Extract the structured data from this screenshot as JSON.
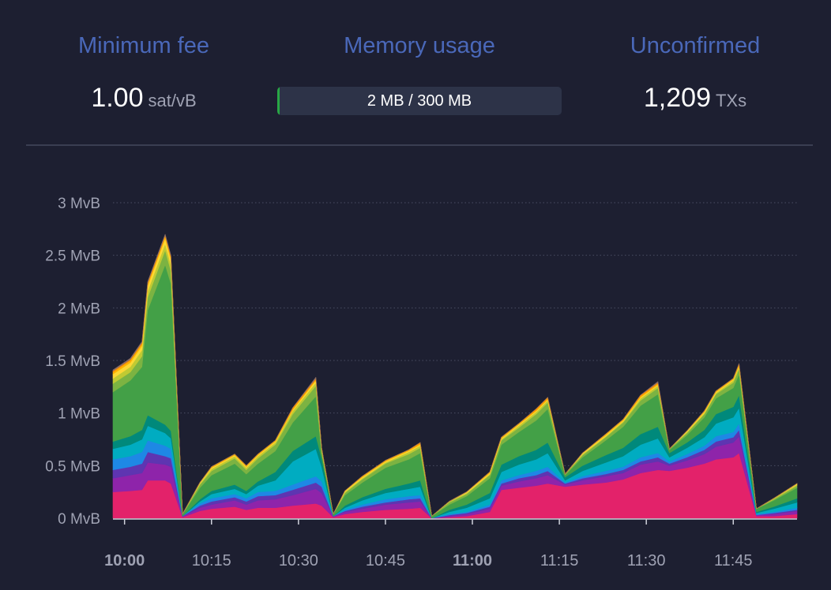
{
  "stats": {
    "min_fee": {
      "title": "Minimum fee",
      "value": "1.00",
      "unit": "sat/vB"
    },
    "memory": {
      "title": "Memory usage",
      "text": "2 MB / 300 MB",
      "used_mb": 2,
      "max_mb": 300,
      "fill_color": "#28a745"
    },
    "unconfirmed": {
      "title": "Unconfirmed",
      "value": "1,209",
      "unit": "TXs"
    }
  },
  "chart_data": {
    "type": "area",
    "stacked": true,
    "y_unit": "MvB",
    "ylim": [
      0,
      3
    ],
    "y_ticks": [
      "0 MvB",
      "0.5 MvB",
      "1 MvB",
      "1.5 MvB",
      "2 MvB",
      "2.5 MvB",
      "3 MvB"
    ],
    "y_tick_values": [
      0,
      0.5,
      1,
      1.5,
      2,
      2.5,
      3
    ],
    "x_range": [
      "09:58",
      "11:56"
    ],
    "x_ticks": [
      {
        "label": "10:00",
        "time": "10:00",
        "major": true
      },
      {
        "label": "10:15",
        "time": "10:15",
        "major": false
      },
      {
        "label": "10:30",
        "time": "10:30",
        "major": false
      },
      {
        "label": "10:45",
        "time": "10:45",
        "major": false
      },
      {
        "label": "11:00",
        "time": "11:00",
        "major": true
      },
      {
        "label": "11:15",
        "time": "11:15",
        "major": false
      },
      {
        "label": "11:30",
        "time": "11:30",
        "major": false
      },
      {
        "label": "11:45",
        "time": "11:45",
        "major": false
      }
    ],
    "grid": true,
    "x": [
      "09:58",
      "10:01",
      "10:03",
      "10:04",
      "10:07",
      "10:08",
      "10:10",
      "10:13",
      "10:15",
      "10:19",
      "10:21",
      "10:23",
      "10:26",
      "10:29",
      "10:33",
      "10:34",
      "10:36",
      "10:38",
      "10:41",
      "10:45",
      "10:49",
      "10:51",
      "10:53",
      "10:56",
      "10:59",
      "11:03",
      "11:05",
      "11:08",
      "11:11",
      "11:13",
      "11:16",
      "11:19",
      "11:23",
      "11:26",
      "11:29",
      "11:32",
      "11:34",
      "11:37",
      "11:40",
      "11:42",
      "11:45",
      "11:46",
      "11:49",
      "11:52",
      "11:56"
    ],
    "series": [
      {
        "color": "#e3226a",
        "values": [
          0.25,
          0.26,
          0.27,
          0.36,
          0.36,
          0.33,
          0.01,
          0.07,
          0.09,
          0.11,
          0.08,
          0.1,
          0.1,
          0.12,
          0.14,
          0.12,
          0.01,
          0.04,
          0.06,
          0.08,
          0.09,
          0.1,
          0.0,
          0.01,
          0.02,
          0.06,
          0.27,
          0.29,
          0.31,
          0.33,
          0.3,
          0.32,
          0.34,
          0.37,
          0.43,
          0.46,
          0.45,
          0.48,
          0.52,
          0.56,
          0.58,
          0.62,
          0.02,
          0.02,
          0.04
        ]
      },
      {
        "color": "#8e24aa",
        "values": [
          0.13,
          0.15,
          0.16,
          0.17,
          0.15,
          0.16,
          0.01,
          0.03,
          0.04,
          0.06,
          0.05,
          0.07,
          0.08,
          0.1,
          0.14,
          0.12,
          0.01,
          0.02,
          0.03,
          0.05,
          0.06,
          0.06,
          0.0,
          0.01,
          0.02,
          0.03,
          0.04,
          0.06,
          0.07,
          0.08,
          0.02,
          0.04,
          0.06,
          0.06,
          0.08,
          0.08,
          0.05,
          0.07,
          0.09,
          0.12,
          0.14,
          0.16,
          0.01,
          0.02,
          0.03
        ]
      },
      {
        "color": "#5e35b1",
        "values": [
          0.08,
          0.08,
          0.09,
          0.1,
          0.08,
          0.08,
          0.0,
          0.02,
          0.03,
          0.03,
          0.03,
          0.04,
          0.04,
          0.05,
          0.06,
          0.06,
          0.0,
          0.01,
          0.02,
          0.02,
          0.03,
          0.03,
          0.0,
          0.01,
          0.01,
          0.02,
          0.02,
          0.03,
          0.03,
          0.04,
          0.01,
          0.02,
          0.02,
          0.03,
          0.03,
          0.04,
          0.02,
          0.03,
          0.04,
          0.05,
          0.05,
          0.06,
          0.0,
          0.01,
          0.01
        ]
      },
      {
        "color": "#1e88e5",
        "values": [
          0.1,
          0.1,
          0.11,
          0.11,
          0.1,
          0.09,
          0.0,
          0.02,
          0.03,
          0.03,
          0.03,
          0.04,
          0.04,
          0.05,
          0.06,
          0.05,
          0.0,
          0.01,
          0.02,
          0.03,
          0.03,
          0.03,
          0.0,
          0.01,
          0.01,
          0.02,
          0.03,
          0.03,
          0.04,
          0.04,
          0.01,
          0.02,
          0.03,
          0.03,
          0.04,
          0.04,
          0.02,
          0.03,
          0.04,
          0.05,
          0.05,
          0.06,
          0.01,
          0.01,
          0.02
        ]
      },
      {
        "color": "#00acc1",
        "values": [
          0.1,
          0.11,
          0.12,
          0.14,
          0.12,
          0.1,
          0.0,
          0.02,
          0.04,
          0.05,
          0.04,
          0.06,
          0.1,
          0.22,
          0.26,
          0.14,
          0.0,
          0.02,
          0.04,
          0.06,
          0.07,
          0.08,
          0.0,
          0.02,
          0.04,
          0.06,
          0.08,
          0.1,
          0.11,
          0.13,
          0.02,
          0.05,
          0.08,
          0.1,
          0.12,
          0.14,
          0.04,
          0.06,
          0.08,
          0.12,
          0.14,
          0.15,
          0.01,
          0.03,
          0.05
        ]
      },
      {
        "color": "#00897b",
        "values": [
          0.07,
          0.08,
          0.09,
          0.1,
          0.08,
          0.07,
          0.0,
          0.02,
          0.03,
          0.04,
          0.03,
          0.04,
          0.08,
          0.1,
          0.12,
          0.08,
          0.0,
          0.02,
          0.03,
          0.04,
          0.05,
          0.06,
          0.0,
          0.02,
          0.03,
          0.05,
          0.07,
          0.08,
          0.09,
          0.1,
          0.03,
          0.05,
          0.07,
          0.08,
          0.1,
          0.11,
          0.04,
          0.05,
          0.07,
          0.09,
          0.1,
          0.12,
          0.01,
          0.02,
          0.04
        ]
      },
      {
        "color": "#43a047",
        "values": [
          0.47,
          0.53,
          0.6,
          1.0,
          1.52,
          1.4,
          0.02,
          0.11,
          0.15,
          0.2,
          0.16,
          0.17,
          0.2,
          0.27,
          0.38,
          0.05,
          0.02,
          0.1,
          0.14,
          0.2,
          0.23,
          0.26,
          0.02,
          0.05,
          0.08,
          0.14,
          0.19,
          0.23,
          0.28,
          0.32,
          0.02,
          0.08,
          0.14,
          0.2,
          0.27,
          0.31,
          0.03,
          0.07,
          0.12,
          0.15,
          0.18,
          0.2,
          0.03,
          0.06,
          0.1
        ]
      },
      {
        "color": "#7cb342",
        "values": [
          0.08,
          0.08,
          0.1,
          0.12,
          0.14,
          0.12,
          0.0,
          0.03,
          0.04,
          0.05,
          0.04,
          0.05,
          0.06,
          0.08,
          0.1,
          0.02,
          0.0,
          0.02,
          0.03,
          0.04,
          0.05,
          0.05,
          0.0,
          0.02,
          0.02,
          0.03,
          0.04,
          0.04,
          0.06,
          0.06,
          0.01,
          0.02,
          0.03,
          0.04,
          0.05,
          0.06,
          0.01,
          0.02,
          0.03,
          0.04,
          0.05,
          0.05,
          0.0,
          0.01,
          0.02
        ]
      },
      {
        "color": "#c0ca33",
        "values": [
          0.05,
          0.05,
          0.06,
          0.06,
          0.06,
          0.06,
          0.0,
          0.01,
          0.02,
          0.02,
          0.02,
          0.02,
          0.02,
          0.03,
          0.03,
          0.01,
          0.0,
          0.01,
          0.01,
          0.01,
          0.02,
          0.02,
          0.0,
          0.01,
          0.01,
          0.01,
          0.01,
          0.02,
          0.02,
          0.02,
          0.0,
          0.01,
          0.01,
          0.01,
          0.02,
          0.02,
          0.0,
          0.01,
          0.01,
          0.01,
          0.02,
          0.02,
          0.0,
          0.01,
          0.01
        ]
      },
      {
        "color": "#fdd835",
        "values": [
          0.04,
          0.04,
          0.04,
          0.05,
          0.05,
          0.05,
          0.0,
          0.01,
          0.01,
          0.01,
          0.01,
          0.01,
          0.01,
          0.01,
          0.02,
          0.01,
          0.0,
          0.01,
          0.01,
          0.01,
          0.01,
          0.01,
          0.0,
          0.0,
          0.01,
          0.01,
          0.01,
          0.01,
          0.01,
          0.01,
          0.0,
          0.01,
          0.01,
          0.01,
          0.01,
          0.01,
          0.0,
          0.01,
          0.01,
          0.01,
          0.01,
          0.01,
          0.0,
          0.0,
          0.01
        ]
      },
      {
        "color": "#ffb300",
        "values": [
          0.02,
          0.02,
          0.02,
          0.02,
          0.02,
          0.02,
          0.0,
          0.0,
          0.01,
          0.01,
          0.01,
          0.01,
          0.01,
          0.01,
          0.01,
          0.01,
          0.0,
          0.0,
          0.01,
          0.01,
          0.01,
          0.01,
          0.0,
          0.0,
          0.0,
          0.01,
          0.01,
          0.01,
          0.01,
          0.01,
          0.0,
          0.0,
          0.01,
          0.01,
          0.01,
          0.01,
          0.0,
          0.0,
          0.01,
          0.01,
          0.01,
          0.01,
          0.0,
          0.0,
          0.0
        ]
      },
      {
        "color": "#fb8c00",
        "values": [
          0.01,
          0.01,
          0.01,
          0.01,
          0.01,
          0.01,
          0.0,
          0.0,
          0.0,
          0.0,
          0.0,
          0.0,
          0.0,
          0.01,
          0.01,
          0.0,
          0.0,
          0.0,
          0.0,
          0.0,
          0.0,
          0.01,
          0.0,
          0.0,
          0.0,
          0.0,
          0.0,
          0.0,
          0.01,
          0.01,
          0.0,
          0.0,
          0.0,
          0.0,
          0.01,
          0.01,
          0.0,
          0.0,
          0.0,
          0.0,
          0.0,
          0.01,
          0.0,
          0.0,
          0.0
        ]
      },
      {
        "color": "#8d6e63",
        "values": [
          0.01,
          0.01,
          0.01,
          0.01,
          0.01,
          0.01,
          0.0,
          0.0,
          0.0,
          0.0,
          0.0,
          0.0,
          0.0,
          0.0,
          0.01,
          0.0,
          0.0,
          0.0,
          0.0,
          0.0,
          0.0,
          0.0,
          0.0,
          0.0,
          0.0,
          0.0,
          0.0,
          0.0,
          0.0,
          0.0,
          0.0,
          0.0,
          0.0,
          0.0,
          0.0,
          0.01,
          0.0,
          0.0,
          0.0,
          0.0,
          0.0,
          0.0,
          0.0,
          0.0,
          0.0
        ]
      }
    ]
  }
}
